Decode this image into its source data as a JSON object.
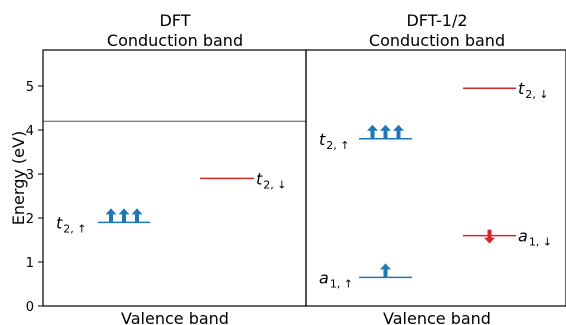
{
  "panels": [
    {
      "method": "DFT",
      "header_sub": "Conduction band",
      "footer": "Valence band",
      "cb_edge": 4.2,
      "levels": [
        {
          "sym": "t",
          "sub": "2, ↑",
          "energy": 1.9,
          "color": "#1f77b4",
          "arrows": 3,
          "dir": "up",
          "label_side": "left"
        },
        {
          "sym": "t",
          "sub": "2, ↓",
          "energy": 2.9,
          "color": "#d62728",
          "arrows": 0,
          "dir": "none",
          "label_side": "right"
        }
      ]
    },
    {
      "method": "DFT-1/2",
      "header_sub": "Conduction band",
      "footer": "Valence band",
      "cb_edge": 5.8,
      "levels": [
        {
          "sym": "t",
          "sub": "2, ↑",
          "energy": 3.8,
          "color": "#1f77b4",
          "arrows": 3,
          "dir": "up",
          "label_side": "left"
        },
        {
          "sym": "t",
          "sub": "2, ↓",
          "energy": 4.95,
          "color": "#d62728",
          "arrows": 0,
          "dir": "none",
          "label_side": "right"
        },
        {
          "sym": "a",
          "sub": "1, ↑",
          "energy": 0.65,
          "color": "#1f77b4",
          "arrows": 1,
          "dir": "up",
          "label_side": "left"
        },
        {
          "sym": "a",
          "sub": "1, ↓",
          "energy": 1.6,
          "color": "#d62728",
          "arrows": 1,
          "dir": "down",
          "label_side": "right"
        }
      ]
    }
  ],
  "axis": {
    "label": "Energy (eV)",
    "ticks": [
      0,
      1,
      2,
      3,
      4,
      5
    ],
    "range": [
      0,
      5.8
    ]
  },
  "colors": {
    "spin_up": "#1f77b4",
    "spin_down": "#d62728",
    "frame": "#000000",
    "band_edge": "#555555"
  }
}
